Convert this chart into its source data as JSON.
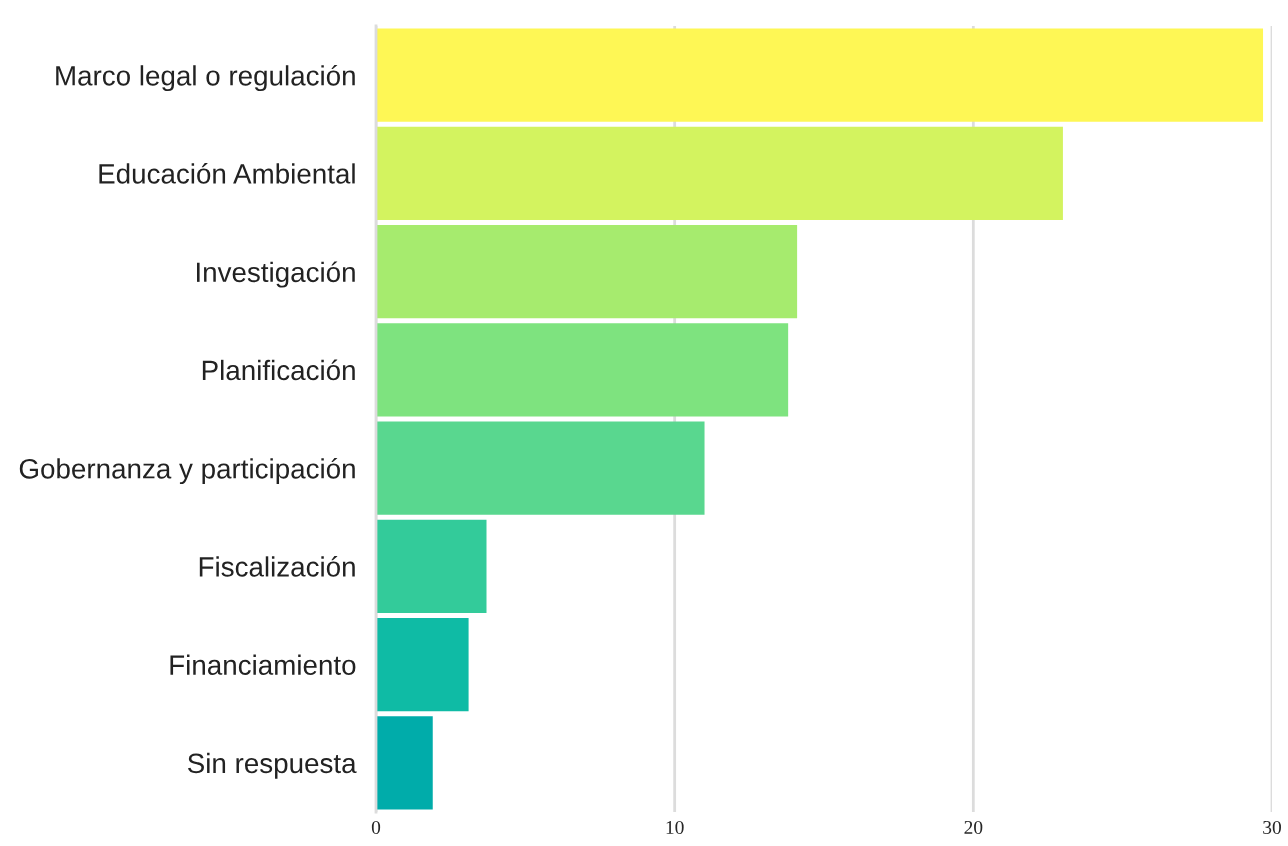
{
  "chart_data": {
    "type": "bar",
    "orientation": "horizontal",
    "categories": [
      "Marco legal o regulación",
      "Educación Ambiental",
      "Investigación",
      "Planificación",
      "Gobernanza y participación",
      "Fiscalización",
      "Financiamiento",
      "Sin respuesta"
    ],
    "values": [
      29.7,
      23,
      14.1,
      13.8,
      11,
      3.7,
      3.1,
      1.9
    ],
    "colors": [
      "#fef755",
      "#d3f35f",
      "#a6eb6e",
      "#7ee37f",
      "#59d78f",
      "#33cb9a",
      "#0fbba5",
      "#00acaa"
    ],
    "xlim": [
      0,
      30
    ],
    "xticks": [
      0,
      10,
      20,
      30
    ],
    "grid": "x"
  }
}
